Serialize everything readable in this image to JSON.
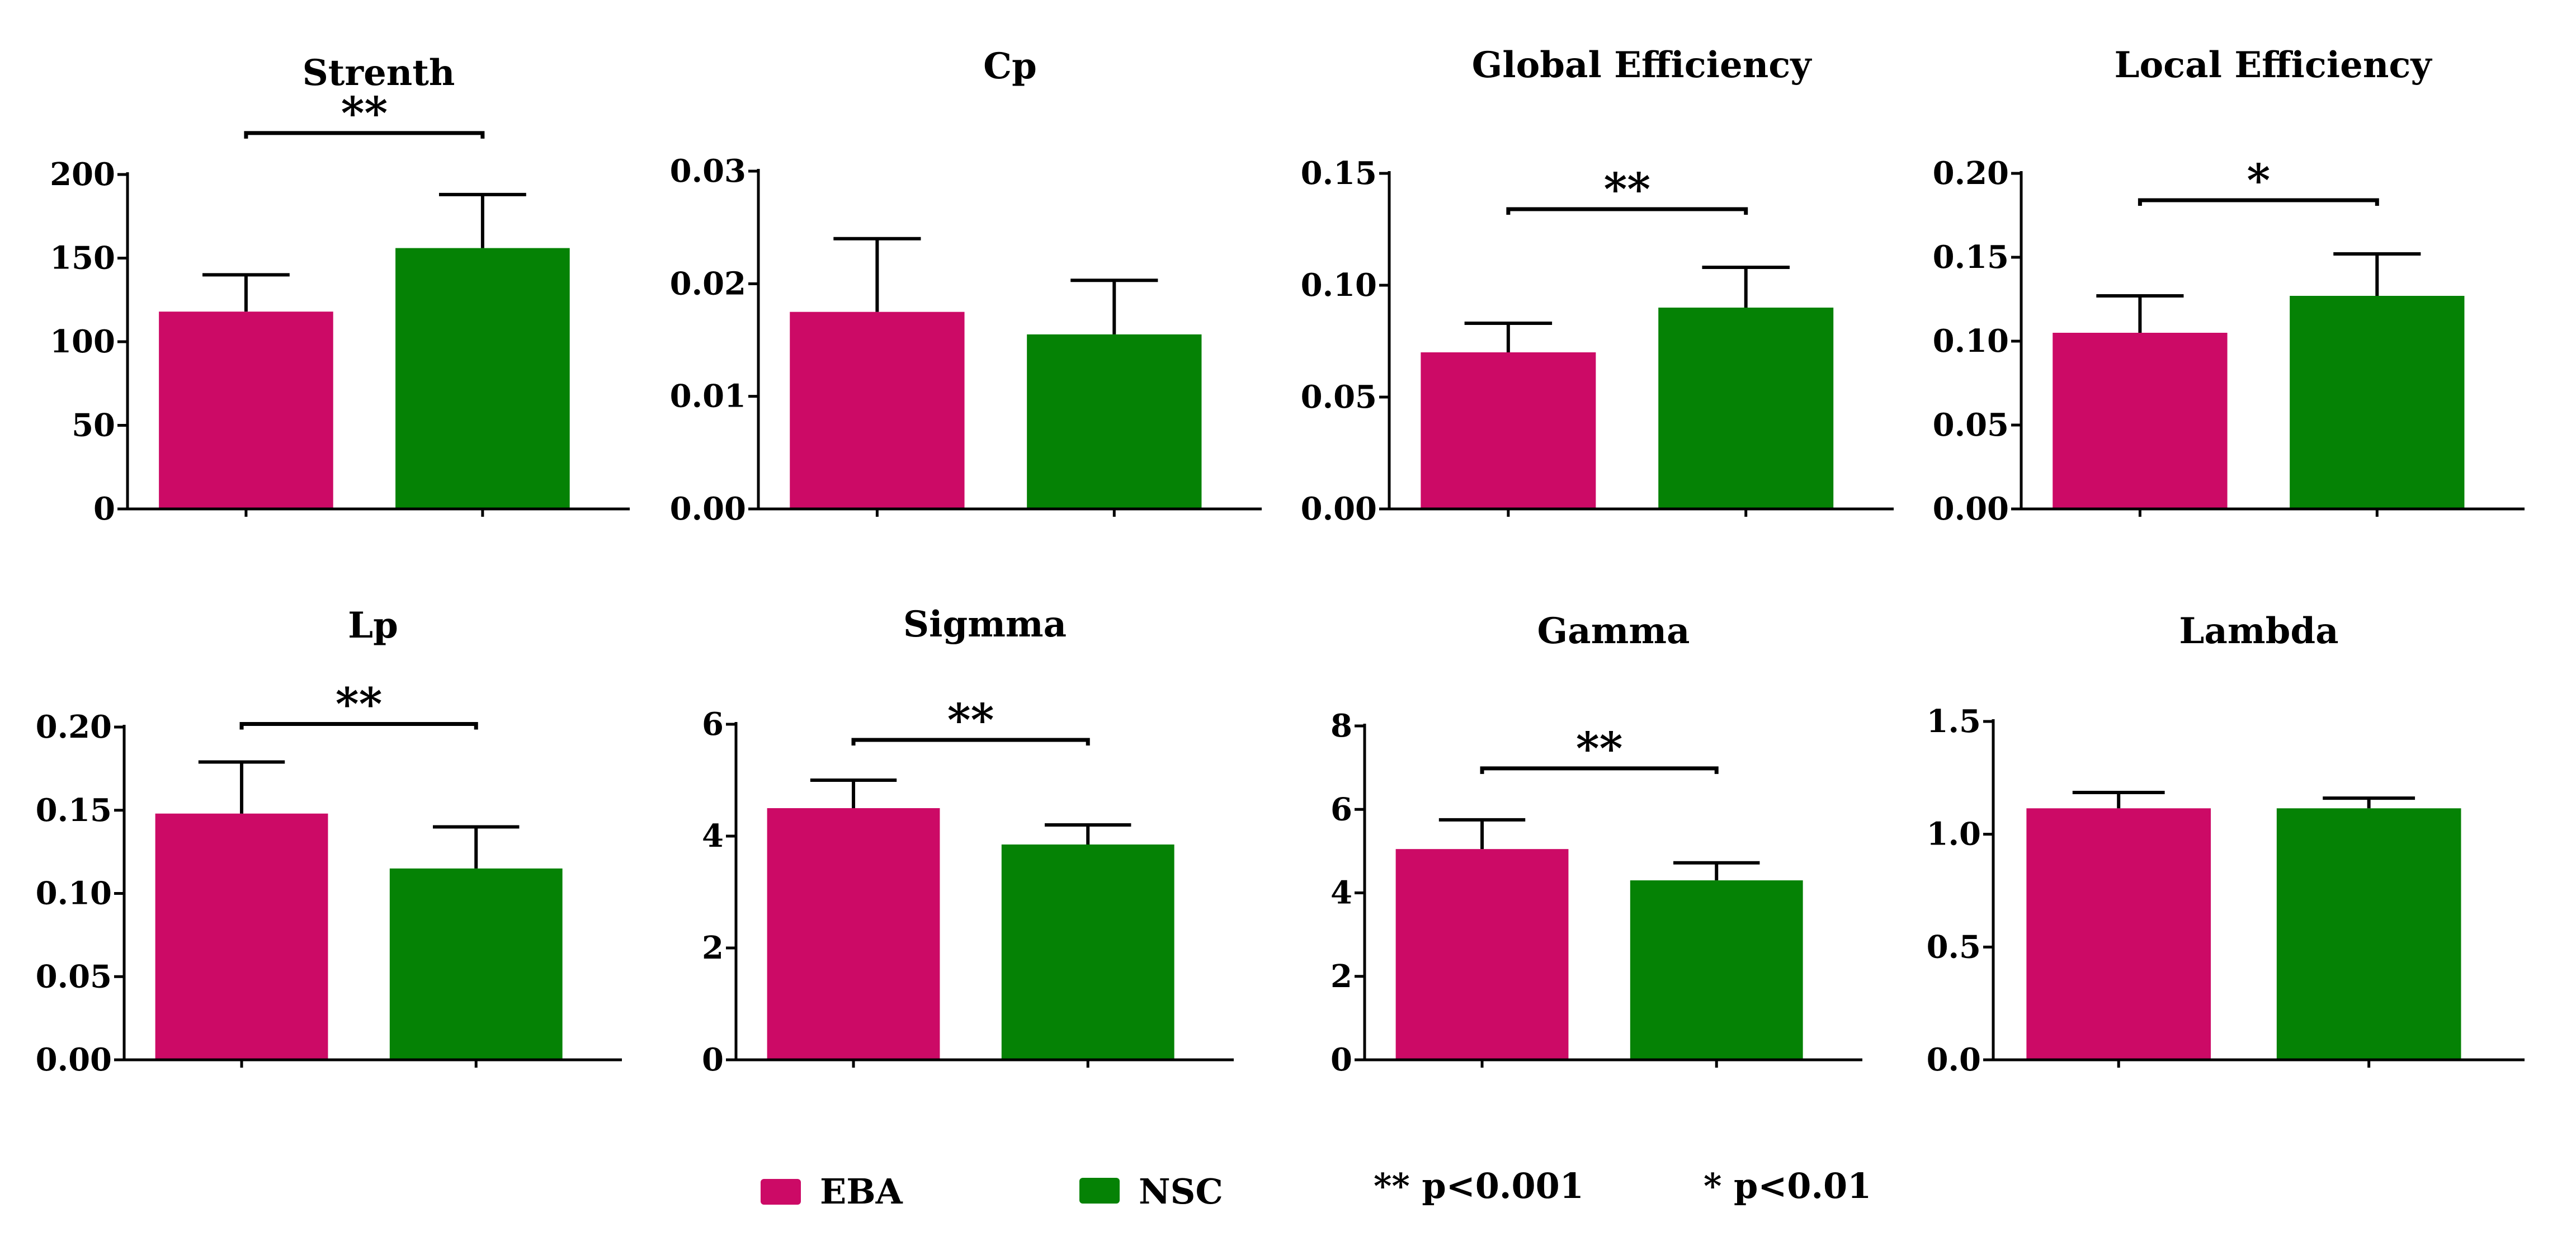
{
  "colors": {
    "EBA": "#cc0a66",
    "NSC": "#058205"
  },
  "chart_data": [
    {
      "type": "bar",
      "title": "Strenth",
      "categories": [
        "EBA",
        "NSC"
      ],
      "values": [
        118,
        156
      ],
      "errors": [
        22,
        32
      ],
      "ylim": [
        0,
        200
      ],
      "yticks": [
        0,
        50,
        100,
        150,
        200
      ],
      "tick_labels": [
        "0",
        "50",
        "100",
        "150",
        "200"
      ],
      "significance": "**"
    },
    {
      "type": "bar",
      "title": "Cp",
      "categories": [
        "EBA",
        "NSC"
      ],
      "values": [
        0.0175,
        0.0155
      ],
      "errors": [
        0.0065,
        0.0048
      ],
      "ylim": [
        0,
        0.03
      ],
      "yticks": [
        0,
        0.01,
        0.02,
        0.03
      ],
      "tick_labels": [
        "0.00",
        "0.01",
        "0.02",
        "0.03"
      ],
      "significance": ""
    },
    {
      "type": "bar",
      "title": "Global Efficiency",
      "categories": [
        "EBA",
        "NSC"
      ],
      "values": [
        0.07,
        0.09
      ],
      "errors": [
        0.013,
        0.018
      ],
      "ylim": [
        0,
        0.15
      ],
      "yticks": [
        0,
        0.05,
        0.1,
        0.15
      ],
      "tick_labels": [
        "0.00",
        "0.05",
        "0.10",
        "0.15"
      ],
      "significance": "**"
    },
    {
      "type": "bar",
      "title": "Local Efficiency",
      "categories": [
        "EBA",
        "NSC"
      ],
      "values": [
        0.105,
        0.127
      ],
      "errors": [
        0.022,
        0.025
      ],
      "ylim": [
        0,
        0.2
      ],
      "yticks": [
        0,
        0.05,
        0.1,
        0.15,
        0.2
      ],
      "tick_labels": [
        "0.00",
        "0.05",
        "0.10",
        "0.15",
        "0.20"
      ],
      "significance": "*"
    },
    {
      "type": "bar",
      "title": "Lp",
      "categories": [
        "EBA",
        "NSC"
      ],
      "values": [
        0.148,
        0.115
      ],
      "errors": [
        0.031,
        0.025
      ],
      "ylim": [
        0,
        0.2
      ],
      "yticks": [
        0,
        0.05,
        0.1,
        0.15,
        0.2
      ],
      "tick_labels": [
        "0.00",
        "0.05",
        "0.10",
        "0.15",
        "0.20"
      ],
      "significance": "**"
    },
    {
      "type": "bar",
      "title": "Sigmma",
      "categories": [
        "EBA",
        "NSC"
      ],
      "values": [
        4.5,
        3.85
      ],
      "errors": [
        0.5,
        0.35
      ],
      "ylim": [
        0,
        6
      ],
      "yticks": [
        0,
        2,
        4,
        6
      ],
      "tick_labels": [
        "0",
        "2",
        "4",
        "6"
      ],
      "significance": "**"
    },
    {
      "type": "bar",
      "title": "Gamma",
      "categories": [
        "EBA",
        "NSC"
      ],
      "values": [
        5.05,
        4.3
      ],
      "errors": [
        0.7,
        0.42
      ],
      "ylim": [
        0,
        8
      ],
      "yticks": [
        0,
        2,
        4,
        6,
        8
      ],
      "tick_labels": [
        "0",
        "2",
        "4",
        "6",
        "8"
      ],
      "significance": "**"
    },
    {
      "type": "bar",
      "title": "Lambda",
      "categories": [
        "EBA",
        "NSC"
      ],
      "values": [
        1.115,
        1.115
      ],
      "errors": [
        0.07,
        0.045
      ],
      "ylim": [
        0,
        1.5
      ],
      "yticks": [
        0,
        0.5,
        1.0,
        1.5
      ],
      "tick_labels": [
        "0.0",
        "0.5",
        "1.0",
        "1.5"
      ],
      "significance": ""
    }
  ],
  "legend": {
    "eba_label": "EBA",
    "nsc_label": "NSC",
    "note_double": "** p<0.001",
    "note_single": "* p<0.01"
  }
}
